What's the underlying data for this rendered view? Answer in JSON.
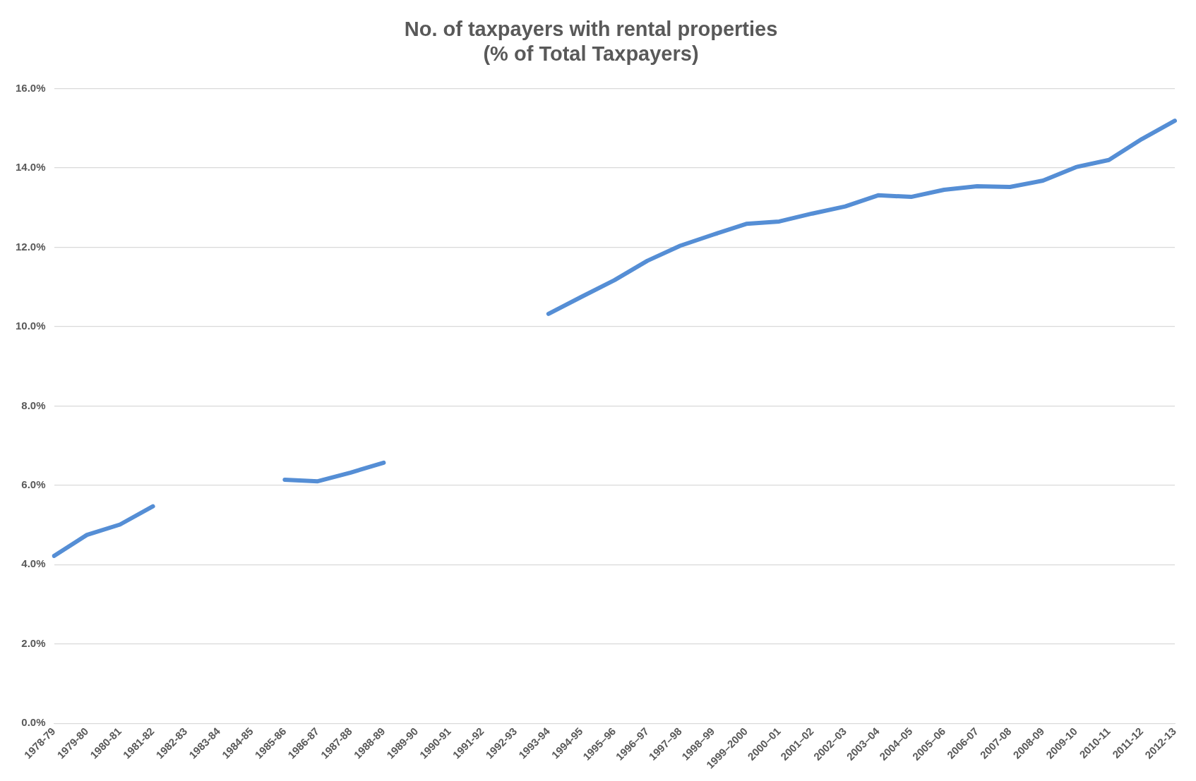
{
  "chart_data": {
    "type": "line",
    "title": [
      "No. of taxpayers with rental properties",
      "(% of Total Taxpayers)"
    ],
    "categories": [
      "1978-79",
      "1979-80",
      "1980-81",
      "1981-82",
      "1982-83",
      "1983-84",
      "1984-85",
      "1985-86",
      "1986-87",
      "1987-88",
      "1988-89",
      "1989-90",
      "1990-91",
      "1991-92",
      "1992-93",
      "1993-94",
      "1994-95",
      "1995–96",
      "1996–97",
      "1997–98",
      "1998–99",
      "1999–2000",
      "2000–01",
      "2001–02",
      "2002–03",
      "2003–04",
      "2004–05",
      "2005–06",
      "2006-07",
      "2007-08",
      "2008-09",
      "2009-10",
      "2010-11",
      "2011-12",
      "2012-13"
    ],
    "series": [
      {
        "color": "#558ed5",
        "values": [
          4.22,
          4.75,
          5.01,
          5.47,
          null,
          null,
          null,
          6.14,
          6.1,
          6.32,
          6.57,
          null,
          null,
          null,
          null,
          10.32,
          10.75,
          11.17,
          11.66,
          12.04,
          12.32,
          12.59,
          12.65,
          12.85,
          13.03,
          13.31,
          13.27,
          13.45,
          13.54,
          13.52,
          13.68,
          14.02,
          14.2,
          14.73,
          15.19
        ]
      }
    ],
    "ylim": [
      0,
      16
    ],
    "yticks": [
      {
        "value": 0,
        "label": "0.0%"
      },
      {
        "value": 2,
        "label": "2.0%"
      },
      {
        "value": 4,
        "label": "4.0%"
      },
      {
        "value": 6,
        "label": "6.0%"
      },
      {
        "value": 8,
        "label": "8.0%"
      },
      {
        "value": 10,
        "label": "10.0%"
      },
      {
        "value": 12,
        "label": "12.0%"
      },
      {
        "value": 14,
        "label": "14.0%"
      },
      {
        "value": 16,
        "label": "16.0%"
      }
    ],
    "grid": "y",
    "legend": false,
    "marker": "none",
    "line_style": "solid"
  }
}
